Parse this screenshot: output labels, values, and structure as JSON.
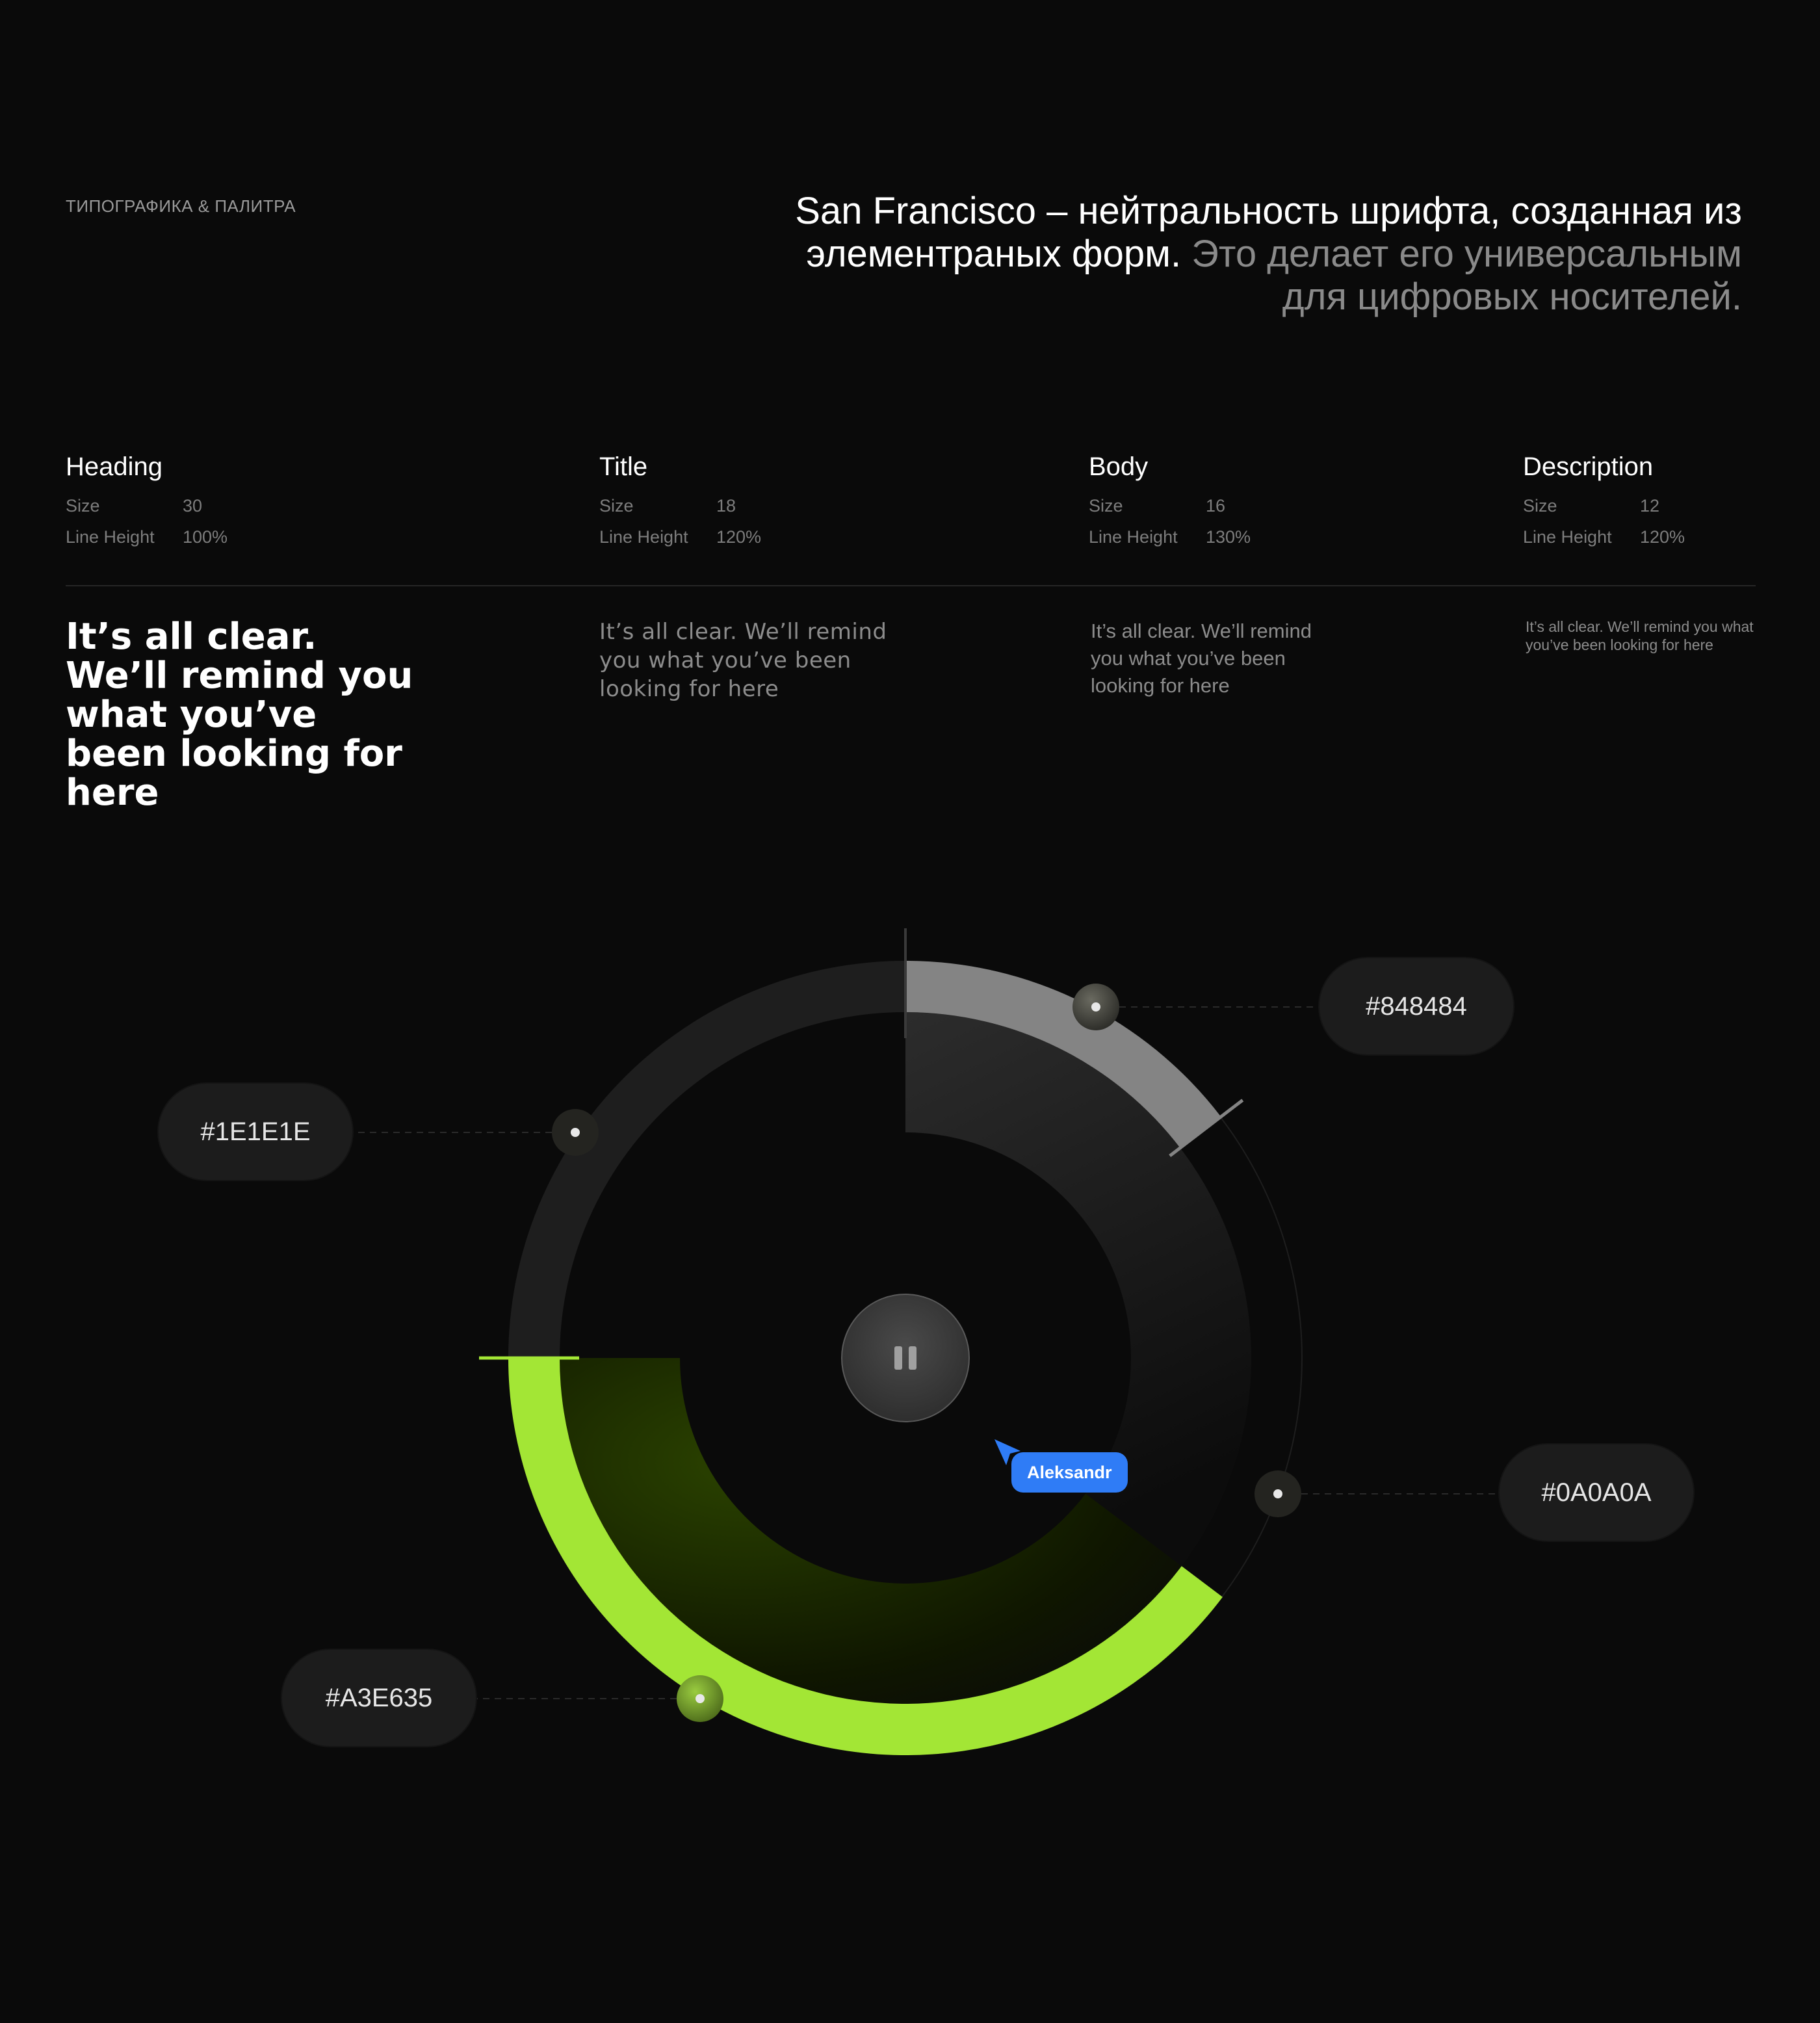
{
  "header": {
    "eyebrow": "ТИПОГРАФИКА & ПАЛИТРА",
    "headline_main": "San Francisco – нейтральность шрифта, созданная из элементраных форм.",
    "headline_dim": "Это делает его универсальным для цифровых носителей."
  },
  "typography": [
    {
      "name": "Heading",
      "size_label": "Size",
      "size": "30",
      "lh_label": "Line Height",
      "line_height": "100%",
      "sample": "It’s all clear. We’ll remind you what you’ve been looking for here"
    },
    {
      "name": "Title",
      "size_label": "Size",
      "size": "18",
      "lh_label": "Line Height",
      "line_height": "120%",
      "sample": "It’s all clear. We’ll remind you what you’ve been looking for here"
    },
    {
      "name": "Body",
      "size_label": "Size",
      "size": "16",
      "lh_label": "Line Height",
      "line_height": "130%",
      "sample": "It’s all clear. We’ll remind you what you’ve been looking for here"
    },
    {
      "name": "Description",
      "size_label": "Size",
      "size": "12",
      "lh_label": "Line Height",
      "line_height": "120%",
      "sample": "It’s all clear. We’ll remind you what you’ve been looking for here"
    }
  ],
  "palette": [
    {
      "label": "#848484",
      "color": "#848484"
    },
    {
      "label": "#1E1E1E",
      "color": "#1E1E1E"
    },
    {
      "label": "#0A0A0A",
      "color": "#0A0A0A"
    },
    {
      "label": "#A3E635",
      "color": "#A3E635"
    }
  ],
  "player": {
    "icon": "pause-icon"
  },
  "cursor": {
    "name": "Aleksandr",
    "color": "#2F7CF6"
  }
}
